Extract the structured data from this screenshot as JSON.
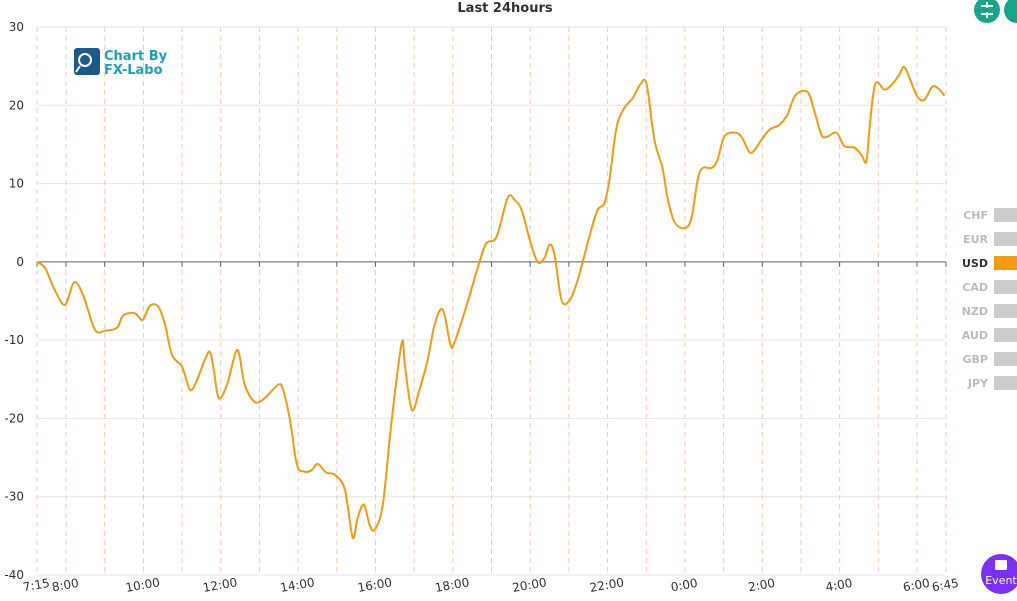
{
  "chart_data": {
    "type": "line",
    "title": "Last 24hours",
    "logo": [
      "Chart By",
      "FX-Labo"
    ],
    "event_button": "Event",
    "xlim": [
      7.25,
      30.75
    ],
    "xticks": [
      {
        "value": 7.25,
        "label": "7:15"
      },
      {
        "value": 8,
        "label": "8:00"
      },
      {
        "value": 10,
        "label": "10:00"
      },
      {
        "value": 12,
        "label": "12:00"
      },
      {
        "value": 14,
        "label": "14:00"
      },
      {
        "value": 16,
        "label": "16:00"
      },
      {
        "value": 18,
        "label": "18:00"
      },
      {
        "value": 20,
        "label": "20:00"
      },
      {
        "value": 22,
        "label": "22:00"
      },
      {
        "value": 24,
        "label": "0:00"
      },
      {
        "value": 26,
        "label": "2:00"
      },
      {
        "value": 28,
        "label": "4:00"
      },
      {
        "value": 30,
        "label": "6:00"
      },
      {
        "value": 30.75,
        "label": "6:45"
      }
    ],
    "xgrid": [
      7.25,
      8,
      9,
      10,
      11,
      12,
      13,
      14,
      15,
      16,
      17,
      18,
      19,
      20,
      21,
      22,
      23,
      24,
      25,
      26,
      27,
      28,
      29,
      30,
      30.75
    ],
    "ylim": [
      -40,
      30
    ],
    "yticks": [
      30,
      20,
      10,
      0,
      -10,
      -20,
      -30,
      -40
    ],
    "grid": true,
    "legend": [
      {
        "name": "CHF",
        "active": false
      },
      {
        "name": "EUR",
        "active": false
      },
      {
        "name": "USD",
        "active": true
      },
      {
        "name": "CAD",
        "active": false
      },
      {
        "name": "NZD",
        "active": false
      },
      {
        "name": "AUD",
        "active": false
      },
      {
        "name": "GBP",
        "active": false
      },
      {
        "name": "JPY",
        "active": false
      }
    ],
    "inactive_color": "#cccccc",
    "series": [
      {
        "name": "USD",
        "color": "#f39c12",
        "x": [
          7.25,
          7.46,
          7.71,
          7.97,
          8.18,
          8.31,
          8.49,
          8.75,
          9.01,
          9.32,
          9.47,
          9.73,
          9.86,
          9.99,
          10.17,
          10.38,
          10.56,
          10.74,
          11.0,
          11.2,
          11.36,
          11.59,
          11.72,
          11.82,
          11.95,
          12.16,
          12.39,
          12.49,
          12.62,
          12.88,
          13.14,
          13.48,
          13.61,
          13.79,
          13.97,
          14.17,
          14.35,
          14.51,
          14.72,
          14.95,
          15.21,
          15.41,
          15.54,
          15.7,
          15.85,
          15.98,
          16.19,
          16.42,
          16.68,
          16.76,
          16.94,
          17.14,
          17.35,
          17.53,
          17.74,
          17.94,
          18.05,
          18.36,
          18.69,
          18.87,
          19.13,
          19.42,
          19.6,
          19.78,
          19.99,
          20.19,
          20.37,
          20.5,
          20.63,
          20.81,
          21.02,
          21.23,
          21.54,
          21.74,
          21.92,
          22.05,
          22.23,
          22.44,
          22.65,
          22.85,
          23.01,
          23.21,
          23.42,
          23.55,
          23.73,
          23.99,
          24.17,
          24.33,
          24.46,
          24.69,
          24.84,
          25.02,
          25.28,
          25.46,
          25.67,
          25.8,
          25.98,
          26.19,
          26.44,
          26.65,
          26.86,
          27.17,
          27.35,
          27.53,
          27.68,
          27.92,
          28.12,
          28.38,
          28.56,
          28.69,
          28.77,
          28.92,
          29.16,
          29.36,
          29.54,
          29.67,
          29.83,
          30.01,
          30.19,
          30.4,
          30.58,
          30.71
        ],
        "values": [
          0,
          -0.8,
          -3.6,
          -5.5,
          -2.8,
          -2.9,
          -4.9,
          -8.7,
          -8.8,
          -8.4,
          -6.9,
          -6.5,
          -6.9,
          -7.4,
          -5.6,
          -5.7,
          -8.0,
          -11.9,
          -13.4,
          -16.3,
          -15.4,
          -12.5,
          -11.5,
          -13.8,
          -17.4,
          -15.7,
          -11.5,
          -12.1,
          -15.7,
          -17.9,
          -17.4,
          -15.7,
          -16.3,
          -20.2,
          -25.9,
          -26.8,
          -26.6,
          -25.8,
          -26.9,
          -27.2,
          -29.1,
          -35.2,
          -32.7,
          -31.0,
          -33.6,
          -34.2,
          -31.0,
          -20.2,
          -10.3,
          -13.2,
          -18.9,
          -16.3,
          -12.5,
          -8.0,
          -6.1,
          -10.6,
          -10.2,
          -5.5,
          0,
          2.4,
          3.2,
          8.2,
          7.9,
          6.6,
          2.8,
          0,
          0.5,
          2.2,
          0.9,
          -4.9,
          -4.9,
          -2.3,
          3.4,
          6.6,
          7.5,
          10.5,
          17.1,
          19.7,
          20.9,
          22.7,
          22.7,
          15.6,
          12.0,
          8.2,
          5.1,
          4.3,
          5.6,
          10.5,
          12.0,
          12.0,
          13.0,
          16.0,
          16.5,
          16.0,
          14.0,
          14.3,
          15.6,
          16.9,
          17.5,
          18.8,
          21.3,
          21.7,
          19.2,
          16.2,
          16.0,
          16.5,
          14.8,
          14.6,
          13.7,
          12.8,
          16.9,
          22.7,
          22.0,
          22.7,
          23.9,
          24.9,
          23.2,
          21.1,
          20.7,
          22.4,
          22.0,
          21.2
        ]
      }
    ]
  }
}
